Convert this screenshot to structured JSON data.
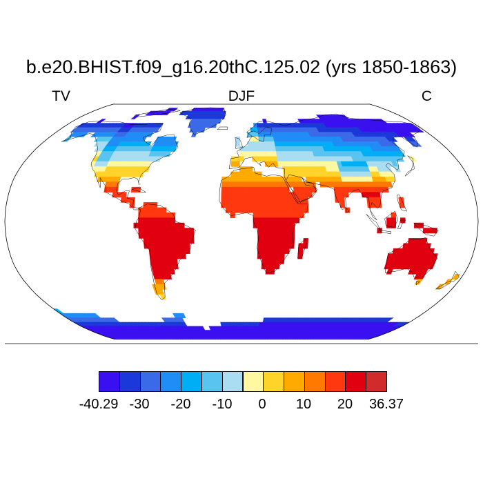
{
  "header": {
    "title": "b.e20.BHIST.f09_g16.20thC.125.02 (yrs 1850-1863)",
    "left_label": "TV",
    "center_label": "DJF",
    "right_label": "C"
  },
  "map": {
    "projection": "robinson",
    "land_only": true,
    "ocean_color": "#ffffff",
    "coastline_color": "#000000"
  },
  "colorbar": {
    "min": -40.29,
    "max": 36.37,
    "colors": [
      "#3a10f0",
      "#1c38d8",
      "#3a6ae8",
      "#208cf5",
      "#00aef5",
      "#5ac4f0",
      "#aadcf2",
      "#fff8a0",
      "#ffd42a",
      "#ffaa00",
      "#ff7800",
      "#ff3810",
      "#e00010",
      "#d22b2b"
    ],
    "tick_labels": [
      "-40.29",
      "-30",
      "-20",
      "-10",
      "0",
      "10",
      "20",
      "36.37"
    ]
  }
}
